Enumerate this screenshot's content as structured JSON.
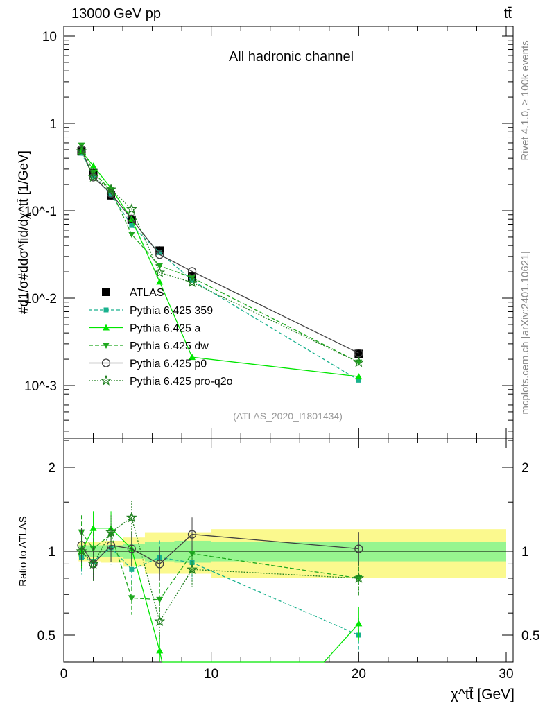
{
  "chart_data": [
    {
      "type": "line",
      "panel": "main",
      "title": "All hadronic channel",
      "header_left": "13000 GeV pp",
      "header_right": "tt̄",
      "ylabel": "#d1/σ#ddσ^fid/dχ^tt̄ [1/GeV]",
      "yscale": "log",
      "ylim": [
        0.00025,
        13
      ],
      "yticks": [
        {
          "v": 10,
          "label": "10"
        },
        {
          "v": 1,
          "label": "1"
        },
        {
          "v": 0.1,
          "label": "10^-1"
        },
        {
          "v": 0.01,
          "label": "10^-2"
        },
        {
          "v": 0.001,
          "label": "10^-3"
        }
      ],
      "xlim": [
        0,
        30
      ],
      "x": [
        1.2,
        2,
        3.2,
        4.6,
        6.5,
        8.7,
        20
      ],
      "reference": {
        "name": "ATLAS",
        "values": [
          0.48,
          0.27,
          0.15,
          0.079,
          0.035,
          0.0176,
          0.0023
        ]
      },
      "series": [
        {
          "name": "Pythia 6.425 359",
          "color": "#19b18e",
          "dash": "5,3",
          "marker": "square",
          "ratio": [
            0.95,
            0.92,
            1.03,
            0.86,
            0.95,
            0.91,
            0.5
          ]
        },
        {
          "name": "Pythia 6.425 a",
          "color": "#00e600",
          "dash": "",
          "marker": "triangle-up",
          "ratio": [
            1.0,
            1.21,
            1.21,
            1.02,
            0.44,
            0.12,
            0.55
          ]
        },
        {
          "name": "Pythia 6.425 dw",
          "color": "#1fa81f",
          "dash": "6,3",
          "marker": "triangle-down",
          "ratio": [
            1.17,
            1.02,
            1.15,
            0.68,
            0.67,
            0.98,
            0.8
          ]
        },
        {
          "name": "Pythia 6.425 p0",
          "color": "#404040",
          "dash": "",
          "marker": "circle",
          "ratio": [
            1.05,
            0.9,
            1.05,
            1.02,
            0.9,
            1.15,
            1.02
          ]
        },
        {
          "name": "Pythia 6.425 pro-q2o",
          "color": "#1f7f1f",
          "dash": "2,2",
          "marker": "star",
          "ratio": [
            1.0,
            0.9,
            1.17,
            1.32,
            0.56,
            0.86,
            0.8
          ]
        }
      ],
      "analysis": "(ATLAS_2020_I1801434)"
    },
    {
      "type": "line",
      "panel": "ratio",
      "ylabel": "Ratio to ATLAS",
      "yscale": "log",
      "ylim": [
        0.4,
        2.54
      ],
      "yticks": [
        {
          "v": 2,
          "label": "2"
        },
        {
          "v": 1,
          "label": "1"
        },
        {
          "v": 0.5,
          "label": "0.5"
        }
      ],
      "xlabel": "χ^tt̄ [GeV]",
      "xticks": [
        0,
        10,
        20,
        30
      ],
      "band_edges": [
        1,
        1.5,
        2.5,
        4,
        5.5,
        7.5,
        10,
        30
      ],
      "stat_band": [
        0.05,
        0.05,
        0.05,
        0.06,
        0.08,
        0.09,
        0.08
      ],
      "total_band": [
        0.08,
        0.08,
        0.09,
        0.12,
        0.17,
        0.17,
        0.2
      ]
    }
  ],
  "side": {
    "rivet": "Rivet 4.1.0, ≥ 100k events",
    "mcplots": "mcplots.cern.ch [arXiv:2401.10621]"
  }
}
